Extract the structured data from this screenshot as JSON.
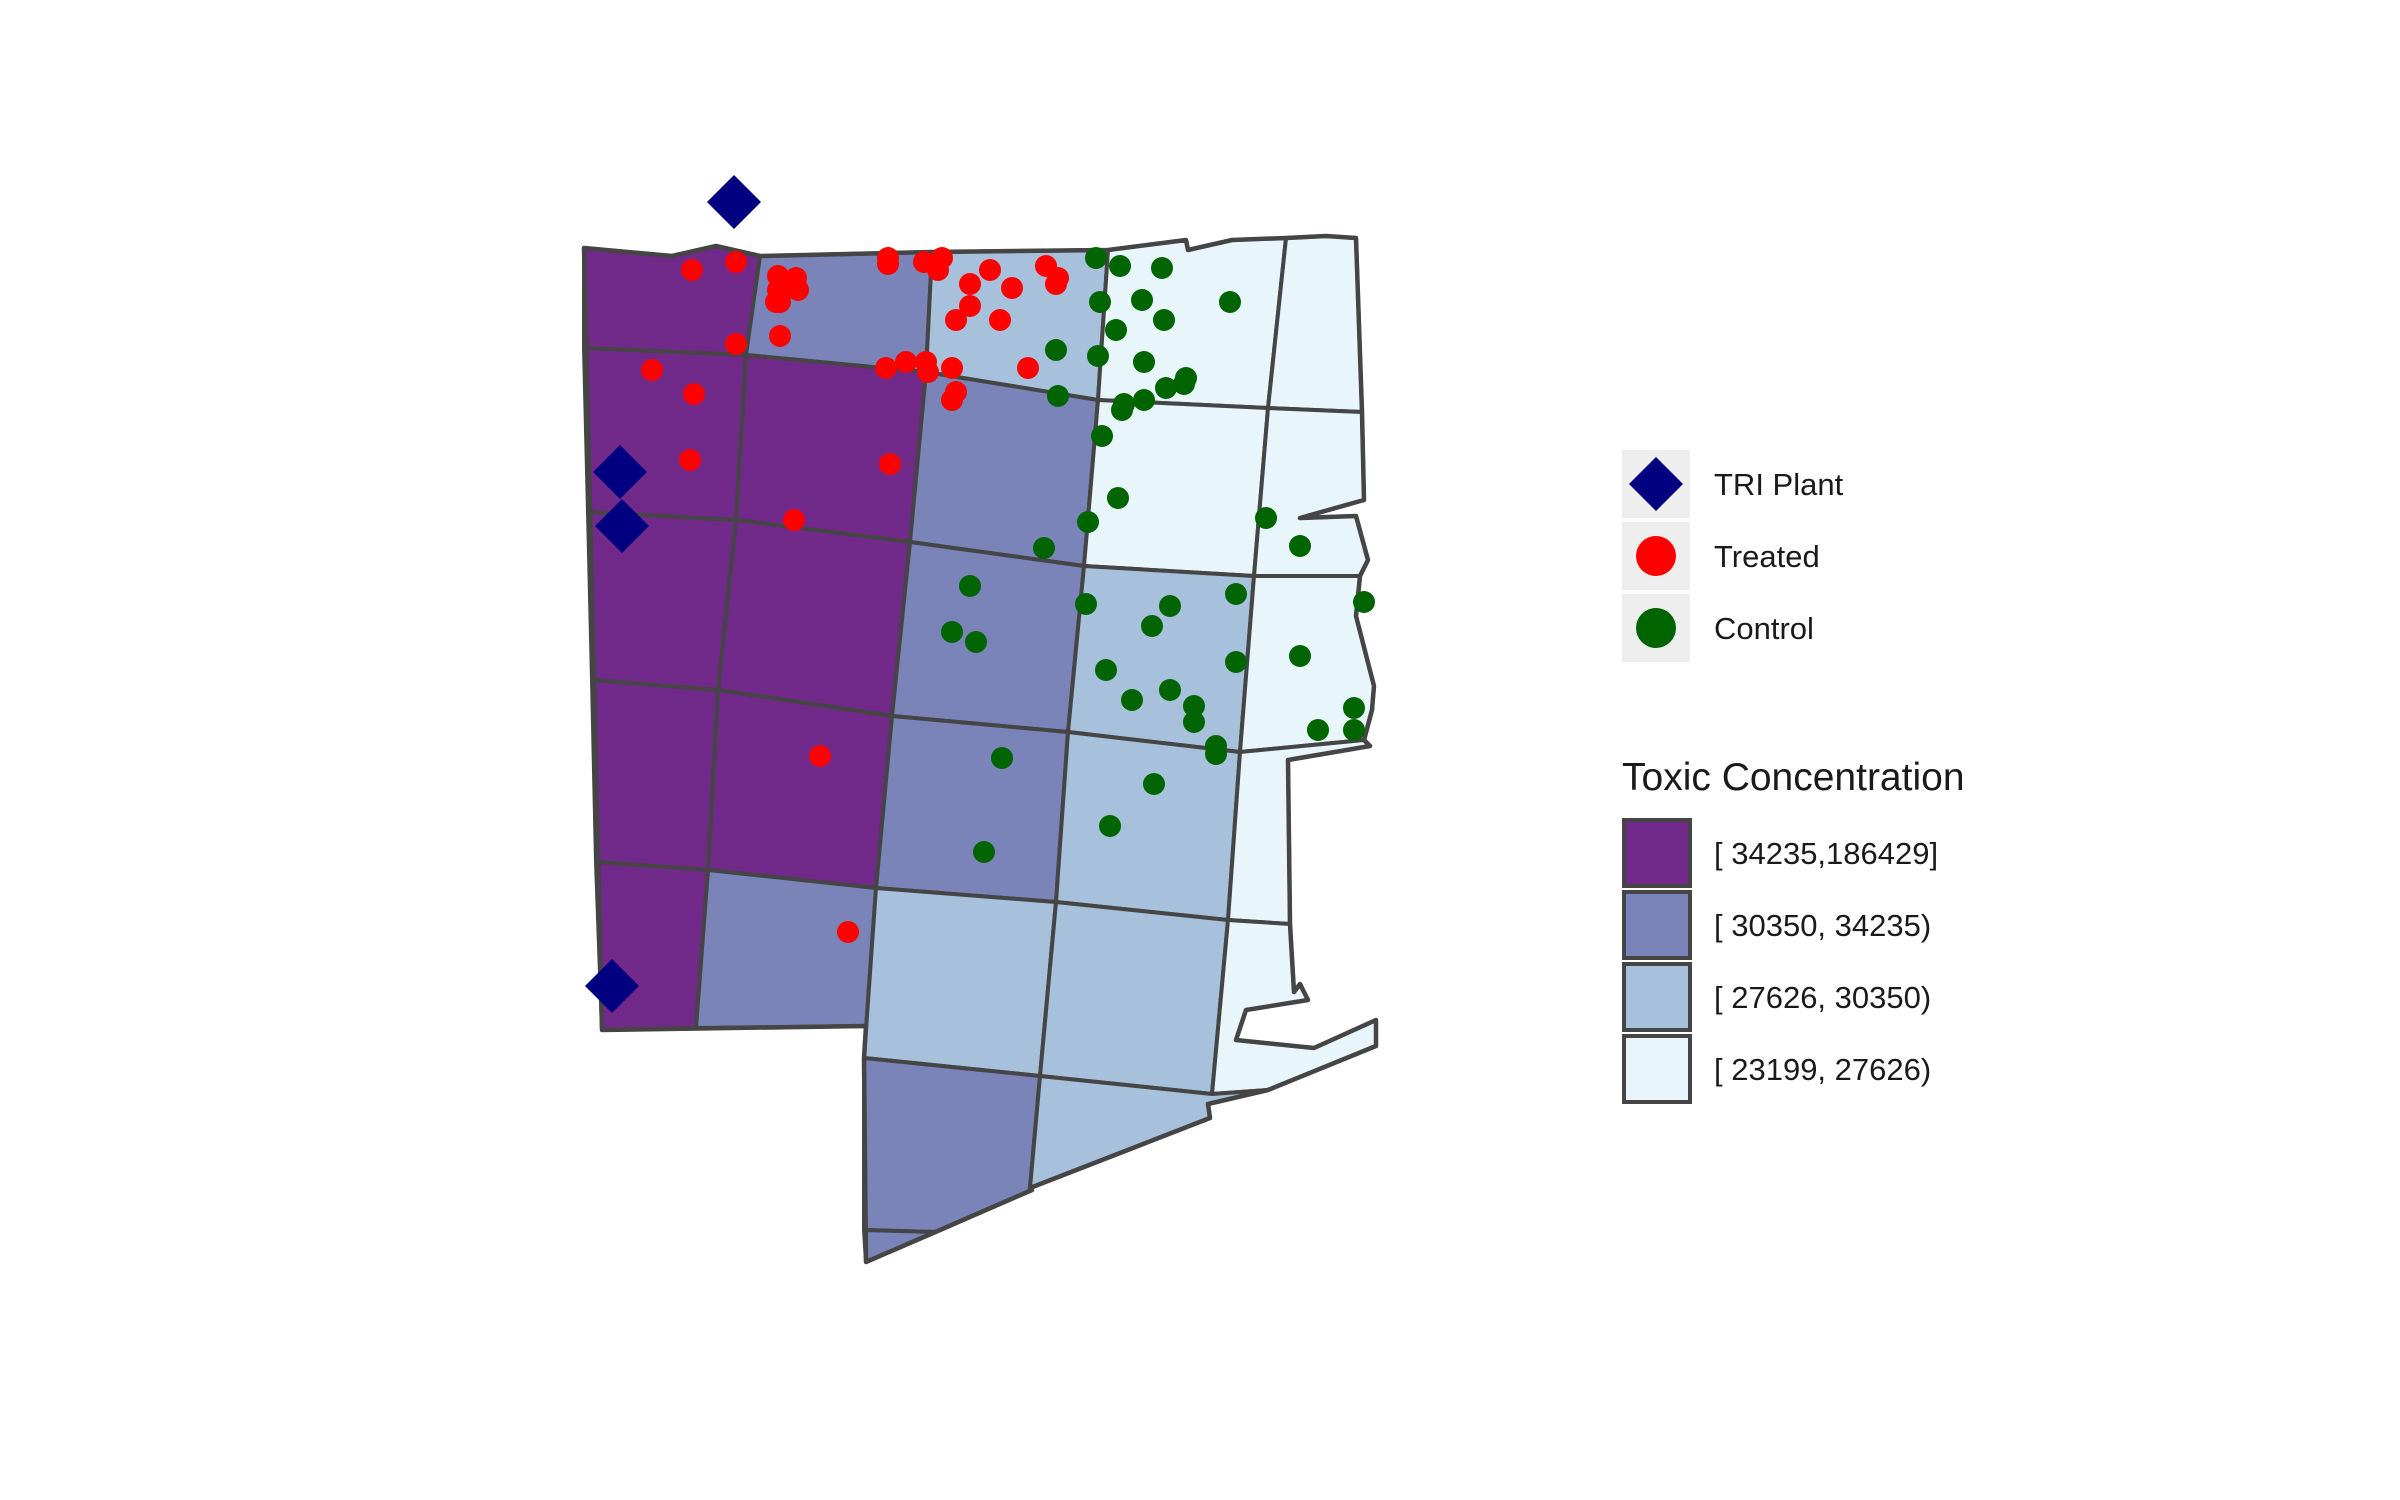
{
  "colors": {
    "purple": "#722a8a",
    "medium_blue": "#7a84b8",
    "light_blue": "#a7c0dc",
    "pale": "#e8f5fa",
    "tri_plant": "#000080",
    "treated": "#ff0000",
    "control": "#006400",
    "border": "#454545"
  },
  "legend_points": {
    "items": [
      {
        "label": "TRI Plant",
        "color": "#000080",
        "shape": "diamond"
      },
      {
        "label": "Treated",
        "color": "#ff0000",
        "shape": "circle"
      },
      {
        "label": "Control",
        "color": "#006400",
        "shape": "circle"
      }
    ]
  },
  "legend_fill": {
    "title": "Toxic Concentration",
    "items": [
      {
        "label": "[ 34235,186429]",
        "color": "#722a8a"
      },
      {
        "label": "[ 30350, 34235)",
        "color": "#7a84b8"
      },
      {
        "label": "[ 27626, 30350)",
        "color": "#a7c0dc"
      },
      {
        "label": "[ 23199, 27626)",
        "color": "#e8f5fa"
      }
    ]
  }
}
